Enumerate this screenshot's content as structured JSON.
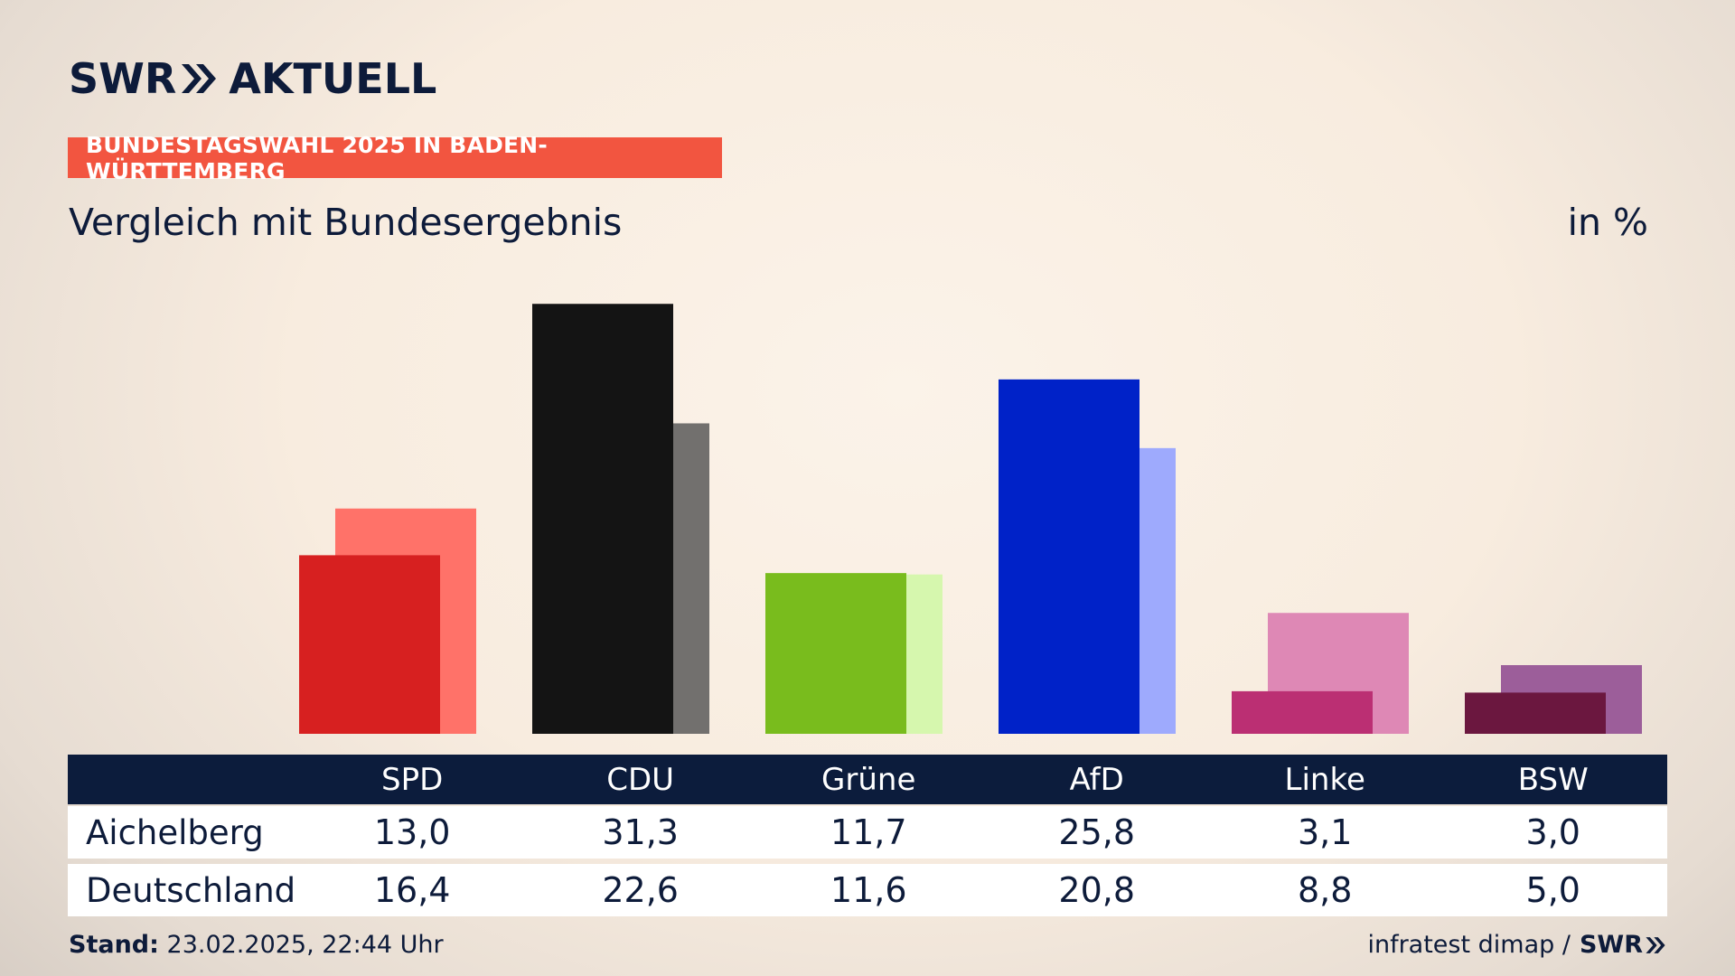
{
  "header": {
    "logo_left": "SWR",
    "logo_right": "AKTUELL",
    "badge": "BUNDESTAGSWAHL 2025 IN BADEN-WÜRTTEMBERG",
    "subtitle": "Vergleich mit Bundesergebnis",
    "unit": "in %"
  },
  "chart_data": {
    "type": "bar",
    "categories": [
      "SPD",
      "CDU",
      "Grüne",
      "AfD",
      "Linke",
      "BSW"
    ],
    "series": [
      {
        "name": "Aichelberg",
        "values": [
          13.0,
          31.3,
          11.7,
          25.8,
          3.1,
          3.0
        ]
      },
      {
        "name": "Deutschland",
        "values": [
          16.4,
          22.6,
          11.6,
          20.8,
          8.8,
          5.0
        ]
      }
    ],
    "colors_primary": [
      "#d72020",
      "#141414",
      "#79bc1d",
      "#0022c8",
      "#bb2f73",
      "#6b173f"
    ],
    "colors_secondary": [
      "#ff7269",
      "#72706e",
      "#d6f7ae",
      "#9eaafd",
      "#de88b5",
      "#9c5e9a"
    ],
    "ylim": [
      0,
      32
    ]
  },
  "table": {
    "rows": [
      {
        "label": "Aichelberg",
        "values": [
          "13,0",
          "31,3",
          "11,7",
          "25,8",
          "3,1",
          "3,0"
        ]
      },
      {
        "label": "Deutschland",
        "values": [
          "16,4",
          "22,6",
          "11,6",
          "20,8",
          "8,8",
          "5,0"
        ]
      }
    ]
  },
  "footer": {
    "stand_label": "Stand:",
    "stand_value": "23.02.2025, 22:44 Uhr",
    "source": "infratest dimap /",
    "source_logo": "SWR"
  }
}
